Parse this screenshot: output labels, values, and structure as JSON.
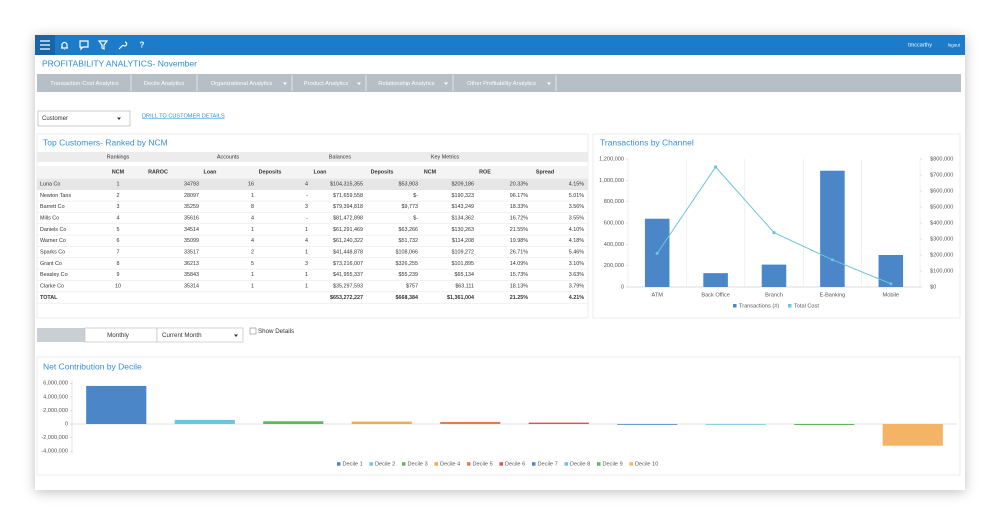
{
  "toolbar": {
    "help": "?",
    "user": "tmccarthy",
    "logout": "logout"
  },
  "header": {
    "title": "PROFITABILITY ANALYTICS- November"
  },
  "nav": {
    "tabs": [
      "Transaction-Cost Analytics",
      "Decile Analytics",
      "Organizational Analytics",
      "Product Analytics",
      "Relationship Analytics",
      "Other Profitability Analytics"
    ]
  },
  "filters": {
    "dropdown": "Customer",
    "link": "DRILL TO CUSTOMER DETAILS",
    "period": "Monthly",
    "range": "Current Month",
    "checkbox": "Show Details"
  },
  "table": {
    "title": "Top Customers- Ranked by NCM",
    "group_headers": [
      "Rankings",
      "Accounts",
      "Balances",
      "Key Metrics"
    ],
    "columns": [
      "NCM",
      "RAROC",
      "Loan",
      "Deposits",
      "Loan",
      "Deposits",
      "NCM",
      "ROE",
      "Spread"
    ],
    "rows": [
      [
        "Luna Co",
        "1",
        "34793",
        "16",
        "4",
        "$104,315,355",
        "$53,903",
        "$209,186",
        "20.33%",
        "4.15%"
      ],
      [
        "Newton Tans",
        "2",
        "28097",
        "1",
        "-",
        "$71,659,558",
        "$-",
        "$190,323",
        "96.17%",
        "5.01%"
      ],
      [
        "Barrett Co",
        "3",
        "35259",
        "8",
        "3",
        "$79,394,818",
        "$9,773",
        "$143,249",
        "18.33%",
        "3.56%"
      ],
      [
        "Mills Co",
        "4",
        "35616",
        "4",
        "-",
        "$81,472,898",
        "$-",
        "$134,362",
        "16.72%",
        "3.55%"
      ],
      [
        "Daniels Co",
        "5",
        "34514",
        "1",
        "1",
        "$61,291,469",
        "$63,266",
        "$130,263",
        "21.55%",
        "4.10%"
      ],
      [
        "Warner Co",
        "6",
        "35099",
        "4",
        "4",
        "$61,240,322",
        "$51,732",
        "$114,208",
        "19.98%",
        "4.18%"
      ],
      [
        "Sparks Co",
        "7",
        "33517",
        "2",
        "1",
        "$41,448,878",
        "$108,066",
        "$109,272",
        "26.71%",
        "5.46%"
      ],
      [
        "Grant Co",
        "8",
        "36213",
        "5",
        "3",
        "$73,216,007",
        "$326,255",
        "$101,895",
        "14.09%",
        "3.10%"
      ],
      [
        "Beasley Co",
        "9",
        "35843",
        "1",
        "1",
        "$41,955,337",
        "$55,239",
        "$65,134",
        "15.73%",
        "3.63%"
      ],
      [
        "Clarke Co",
        "10",
        "35314",
        "1",
        "1",
        "$35,297,593",
        "$757",
        "$63,111",
        "18.13%",
        "3.79%"
      ],
      [
        "TOTAL",
        null,
        null,
        null,
        null,
        "$653,272,227",
        "$668,384",
        "$1,361,004",
        "21.25%",
        "4.21%"
      ]
    ]
  },
  "chart_data": [
    {
      "type": "combo",
      "title": "Transactions by Channel",
      "categories": [
        "ATM",
        "Back Office",
        "Branch",
        "E-Banking",
        "Mobile"
      ],
      "series": [
        {
          "name": "Transactions (#)",
          "color": "#4a86c8",
          "values": [
            640000,
            130000,
            210000,
            1090000,
            300000
          ]
        },
        {
          "name": "Total Cost",
          "color": "#6cc4dd",
          "axis": "y2",
          "values": [
            210000,
            750000,
            340000,
            170000,
            20000
          ]
        }
      ],
      "ylim": [
        0,
        1200000
      ],
      "yticks": [
        0,
        {
          "value": 200000,
          "label": "200,000"
        },
        {
          "value": 400000,
          "label": "400,000"
        },
        {
          "value": 600000,
          "label": "600,000"
        },
        {
          "value": 800000,
          "label": "800,000"
        },
        {
          "value": 1000000,
          "label": "1,000,000"
        },
        {
          "value": 1200000,
          "label": "1,200,000"
        }
      ],
      "y2lim": [
        0,
        800000
      ],
      "y2ticks": [
        {
          "value": 0,
          "label": "$0"
        },
        {
          "value": 100000,
          "label": "$100,000"
        },
        {
          "value": 200000,
          "label": "$200,000"
        },
        {
          "value": 300000,
          "label": "$300,000"
        },
        {
          "value": 400000,
          "label": "$400,000"
        },
        {
          "value": 500000,
          "label": "$500,000"
        },
        {
          "value": 600000,
          "label": "$600,000"
        },
        {
          "value": 700000,
          "label": "$700,000"
        },
        {
          "value": 800000,
          "label": "$800,000"
        }
      ]
    },
    {
      "type": "bar",
      "title": "Net Contribution by Decile",
      "categories": [
        "Decile 1",
        "Decile 2",
        "Decile 3",
        "Decile 4",
        "Decile 5",
        "Decile 6",
        "Decile 7",
        "Decile 8",
        "Decile 9",
        "Decile 10"
      ],
      "values": [
        5600000,
        600000,
        400000,
        350000,
        300000,
        200000,
        -100000,
        -100000,
        -150000,
        -3200000
      ],
      "colors": [
        "#4a86c8",
        "#6cc4dd",
        "#5cb85c",
        "#f0ad4e",
        "#e07b4f",
        "#d9534f",
        "#4a86c8",
        "#6cc4dd",
        "#5cb85c",
        "#f5b366"
      ],
      "ylim": [
        -5000000,
        7000000
      ],
      "yticks": [
        {
          "value": -4000000,
          "label": "-4,000,000"
        },
        {
          "value": -2000000,
          "label": "-2,000,000"
        },
        0,
        {
          "value": 2000000,
          "label": "2,000,000"
        },
        {
          "value": 4000000,
          "label": "4,000,000"
        },
        {
          "value": 6000000,
          "label": "6,000,000"
        }
      ]
    }
  ]
}
